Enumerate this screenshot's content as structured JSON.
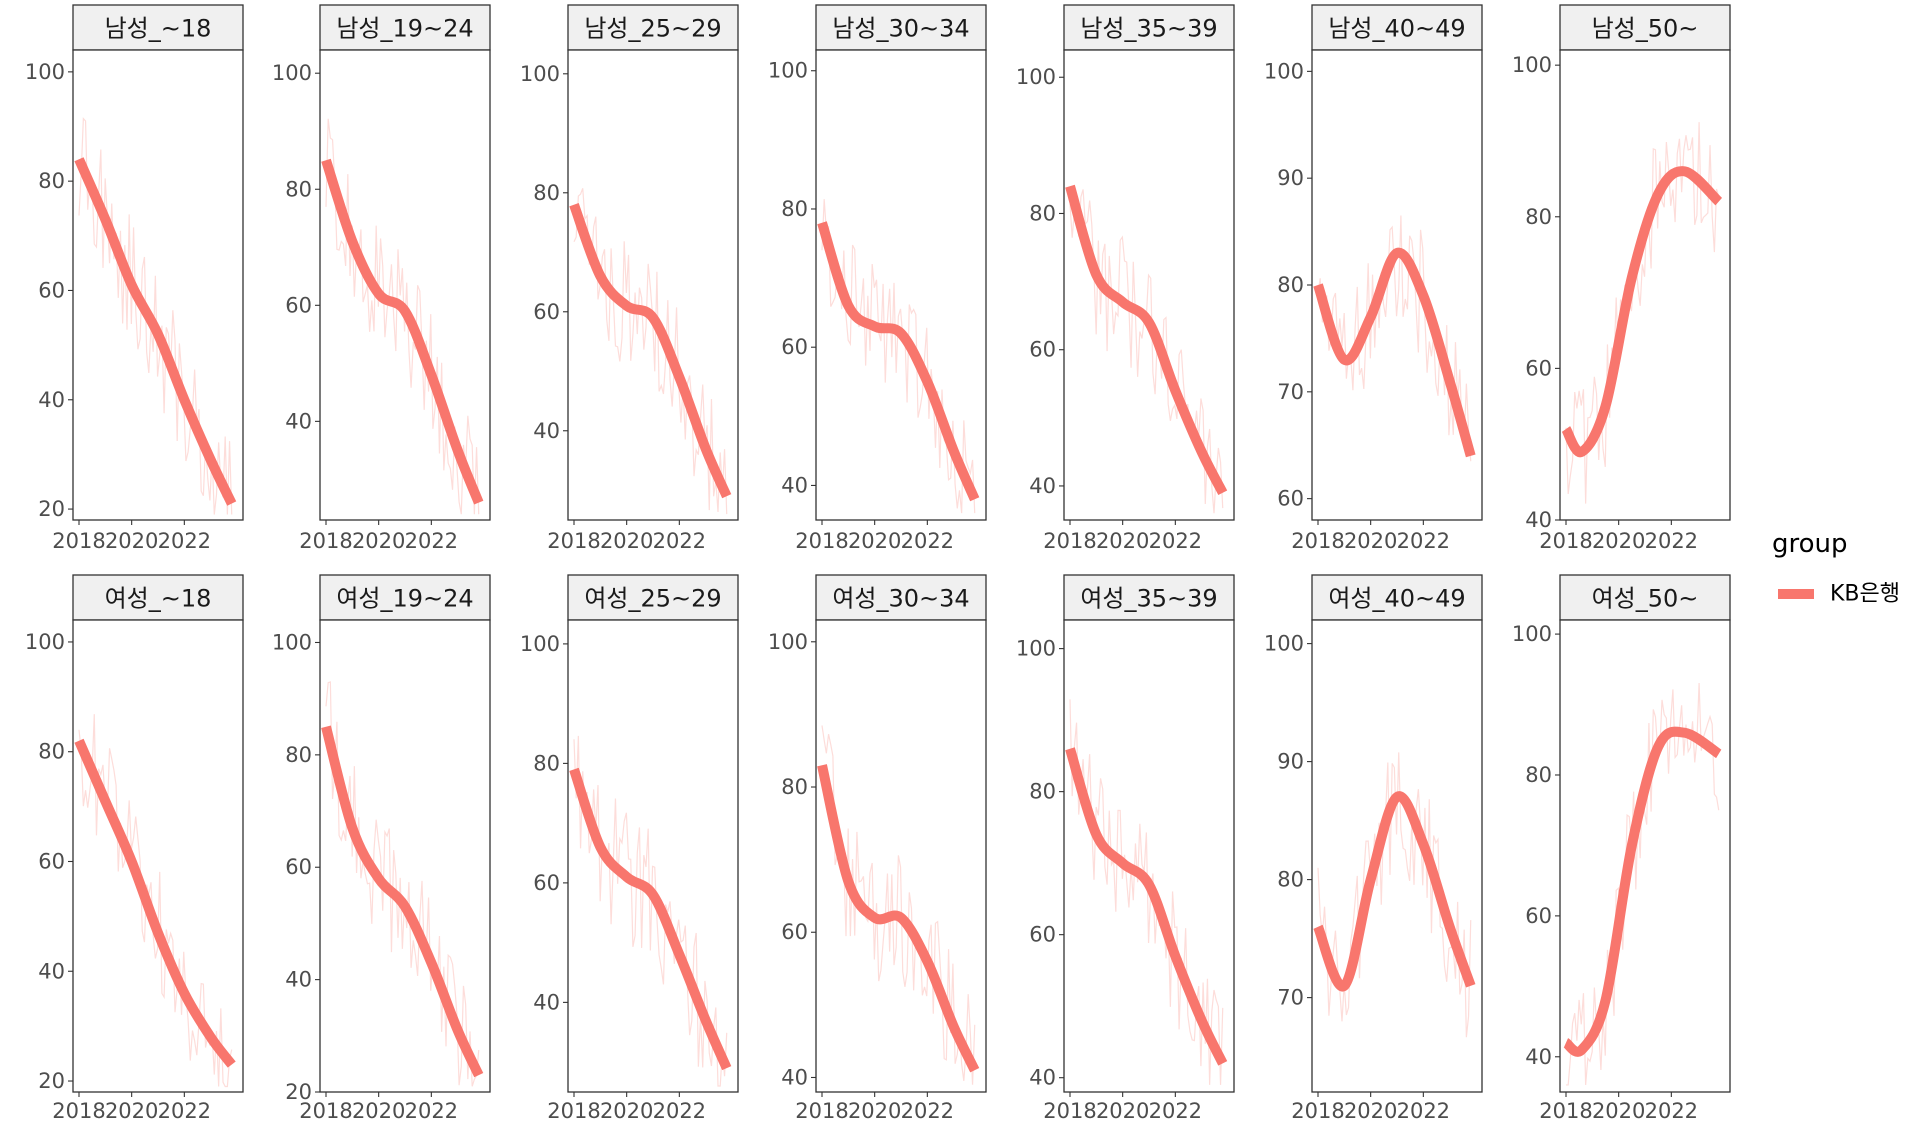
{
  "chart_data": {
    "type": "line",
    "facet_layout": "2 rows x 7 columns",
    "x_tick_labels": [
      "2018",
      "2020",
      "2022"
    ],
    "x_range": [
      2018,
      2024
    ],
    "grid": false,
    "legend": {
      "title": "group",
      "entries": [
        {
          "name": "KB은행",
          "color": "#F8766D"
        }
      ],
      "placement": "right"
    },
    "series_color": "#F8766D",
    "panels": [
      {
        "title": "남성_~18",
        "ylim": [
          18,
          104
        ],
        "yticks": [
          20,
          40,
          60,
          80,
          100
        ],
        "smooth": {
          "x": [
            2018,
            2019,
            2020,
            2021,
            2022,
            2023,
            2023.8
          ],
          "y": [
            84,
            73,
            61,
            52,
            40,
            29,
            21
          ]
        }
      },
      {
        "title": "남성_19~24",
        "ylim": [
          23,
          104
        ],
        "yticks": [
          40,
          60,
          80,
          100
        ],
        "smooth": {
          "x": [
            2018,
            2019,
            2020,
            2021,
            2022,
            2023,
            2023.8
          ],
          "y": [
            85,
            71,
            62,
            59,
            48,
            35,
            26
          ]
        }
      },
      {
        "title": "남성_25~29",
        "ylim": [
          25,
          104
        ],
        "yticks": [
          40,
          60,
          80,
          100
        ],
        "smooth": {
          "x": [
            2018,
            2019,
            2020,
            2021,
            2022,
            2023,
            2023.8
          ],
          "y": [
            78,
            66,
            61,
            59,
            49,
            37,
            29
          ]
        }
      },
      {
        "title": "남성_30~34",
        "ylim": [
          35,
          103
        ],
        "yticks": [
          40,
          60,
          80,
          100
        ],
        "smooth": {
          "x": [
            2018,
            2019,
            2020,
            2021,
            2022,
            2023,
            2023.8
          ],
          "y": [
            78,
            66,
            63,
            62,
            55,
            45,
            38
          ]
        }
      },
      {
        "title": "남성_35~39",
        "ylim": [
          35,
          104
        ],
        "yticks": [
          40,
          60,
          80,
          100
        ],
        "smooth": {
          "x": [
            2018,
            2019,
            2020,
            2021,
            2022,
            2023,
            2023.8
          ],
          "y": [
            84,
            71,
            67,
            64,
            54,
            45,
            39
          ]
        }
      },
      {
        "title": "남성_40~49",
        "ylim": [
          58,
          102
        ],
        "yticks": [
          60,
          70,
          80,
          90,
          100
        ],
        "smooth": {
          "x": [
            2018,
            2019,
            2020,
            2021,
            2022,
            2023,
            2023.8
          ],
          "y": [
            80,
            73,
            77,
            83,
            79,
            71,
            64
          ]
        }
      },
      {
        "title": "남성_50~",
        "ylim": [
          40,
          102
        ],
        "yticks": [
          40,
          60,
          80,
          100
        ],
        "smooth": {
          "x": [
            2018,
            2018.6,
            2019.5,
            2020.5,
            2021.5,
            2022.5,
            2023.8
          ],
          "y": [
            52,
            49,
            55,
            72,
            83,
            86,
            82
          ]
        }
      },
      {
        "title": "여성_~18",
        "ylim": [
          18,
          104
        ],
        "yticks": [
          20,
          40,
          60,
          80,
          100
        ],
        "smooth": {
          "x": [
            2018,
            2019,
            2020,
            2021,
            2022,
            2023,
            2023.8
          ],
          "y": [
            82,
            71,
            60,
            47,
            36,
            28,
            23
          ]
        }
      },
      {
        "title": "여성_19~24",
        "ylim": [
          20,
          104
        ],
        "yticks": [
          20,
          40,
          60,
          80,
          100
        ],
        "smooth": {
          "x": [
            2018,
            2019,
            2020,
            2021,
            2022,
            2023,
            2023.8
          ],
          "y": [
            85,
            67,
            58,
            53,
            43,
            31,
            23
          ]
        }
      },
      {
        "title": "여성_25~29",
        "ylim": [
          25,
          104
        ],
        "yticks": [
          40,
          60,
          80,
          100
        ],
        "smooth": {
          "x": [
            2018,
            2019,
            2020,
            2021,
            2022,
            2023,
            2023.8
          ],
          "y": [
            79,
            66,
            61,
            58,
            48,
            37,
            29
          ]
        }
      },
      {
        "title": "여성_30~34",
        "ylim": [
          38,
          103
        ],
        "yticks": [
          40,
          60,
          80,
          100
        ],
        "smooth": {
          "x": [
            2018,
            2019,
            2020,
            2021,
            2022,
            2023,
            2023.8
          ],
          "y": [
            83,
            67,
            62,
            62,
            56,
            47,
            41
          ]
        }
      },
      {
        "title": "여성_35~39",
        "ylim": [
          38,
          104
        ],
        "yticks": [
          40,
          60,
          80,
          100
        ],
        "smooth": {
          "x": [
            2018,
            2019,
            2020,
            2021,
            2022,
            2023,
            2023.8
          ],
          "y": [
            86,
            74,
            70,
            67,
            57,
            48,
            42
          ]
        }
      },
      {
        "title": "여성_40~49",
        "ylim": [
          62,
          102
        ],
        "yticks": [
          70,
          80,
          90,
          100
        ],
        "smooth": {
          "x": [
            2018,
            2019,
            2020,
            2021,
            2022,
            2023,
            2023.8
          ],
          "y": [
            76,
            71,
            80,
            87,
            83,
            76,
            71
          ]
        }
      },
      {
        "title": "여성_50~",
        "ylim": [
          35,
          102
        ],
        "yticks": [
          40,
          60,
          80,
          100
        ],
        "smooth": {
          "x": [
            2018,
            2018.6,
            2019.5,
            2020.5,
            2021.5,
            2022.5,
            2023.8
          ],
          "y": [
            42,
            41,
            48,
            70,
            84,
            86,
            83
          ]
        }
      }
    ]
  }
}
